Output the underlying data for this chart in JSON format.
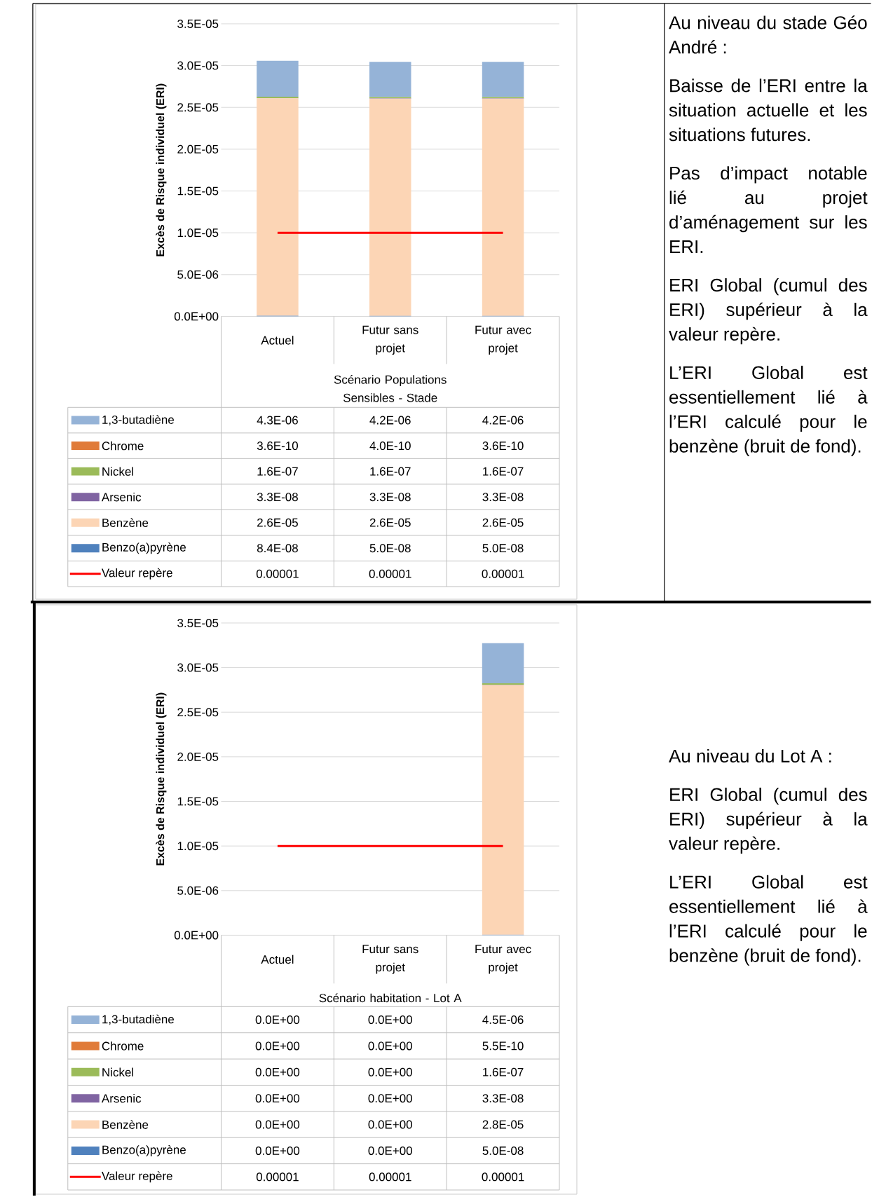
{
  "chart_data": [
    {
      "type": "bar",
      "stacked": true,
      "ylabel": "Excès de Risque individuel (ERI)",
      "xlabel": "Scénario Populations Sensibles - Stade",
      "categories": [
        "Actuel",
        "Futur sans projet",
        "Futur avec projet"
      ],
      "ylim": [
        0,
        3.5e-05
      ],
      "yticks": [
        {
          "value": 0,
          "label": "0.0E+00"
        },
        {
          "value": 5e-06,
          "label": "5.0E-06"
        },
        {
          "value": 1e-05,
          "label": "1.0E-05"
        },
        {
          "value": 1.5e-05,
          "label": "1.5E-05"
        },
        {
          "value": 2e-05,
          "label": "2.0E-05"
        },
        {
          "value": 2.5e-05,
          "label": "2.5E-05"
        },
        {
          "value": 3e-05,
          "label": "3.0E-05"
        },
        {
          "value": 3.5e-05,
          "label": "3.5E-05"
        }
      ],
      "grid": "y",
      "legend": "bottom",
      "series": [
        {
          "name": "Benzo(a)pyrène",
          "color": "#4f81bd",
          "values": [
            8.4e-08,
            5e-08,
            5e-08
          ],
          "value_labels": [
            "8.4E-08",
            "5.0E-08",
            "5.0E-08"
          ]
        },
        {
          "name": "Benzène",
          "color": "#fcd5b5",
          "values": [
            2.6e-05,
            2.6e-05,
            2.6e-05
          ],
          "value_labels": [
            "2.6E-05",
            "2.6E-05",
            "2.6E-05"
          ]
        },
        {
          "name": "Arsenic",
          "color": "#8064a2",
          "values": [
            3.3e-08,
            3.3e-08,
            3.3e-08
          ],
          "value_labels": [
            "3.3E-08",
            "3.3E-08",
            "3.3E-08"
          ]
        },
        {
          "name": "Nickel",
          "color": "#9bbb59",
          "values": [
            1.6e-07,
            1.6e-07,
            1.6e-07
          ],
          "value_labels": [
            "1.6E-07",
            "1.6E-07",
            "1.6E-07"
          ]
        },
        {
          "name": "Chrome",
          "color": "#e07b39",
          "values": [
            3.6e-10,
            4e-10,
            3.6e-10
          ],
          "value_labels": [
            "3.6E-10",
            "4.0E-10",
            "3.6E-10"
          ]
        },
        {
          "name": "1,3-butadiène",
          "color": "#95b3d7",
          "values": [
            4.3e-06,
            4.2e-06,
            4.2e-06
          ],
          "value_labels": [
            "4.3E-06",
            "4.2E-06",
            "4.2E-06"
          ]
        },
        {
          "name": "Valeur repère",
          "type": "line",
          "color": "#ff0000",
          "values": [
            1e-05,
            1e-05,
            1e-05
          ],
          "value_labels": [
            "0.00001",
            "0.00001",
            "0.00001"
          ]
        }
      ]
    },
    {
      "type": "other",
      "title": "Au niveau du stade Géo André :",
      "annotations": [
        "Baisse de l’ERI entre la situation actuelle et les situations futures.",
        "Pas d’impact notable lié au projet d’aménagement sur les ERI.",
        "ERI Global (cumul des ERI) supérieur à la valeur repère.",
        "L’ERI Global est essentiellement lié à l’ERI calculé pour le benzène (bruit de fond)."
      ]
    },
    {
      "type": "bar",
      "stacked": true,
      "ylabel": "Excès de Risque individuel (ERI)",
      "xlabel": "Scénario habitation - Lot A",
      "categories": [
        "Actuel",
        "Futur sans projet",
        "Futur avec projet"
      ],
      "ylim": [
        0,
        3.5e-05
      ],
      "yticks": [
        {
          "value": 0,
          "label": "0.0E+00"
        },
        {
          "value": 5e-06,
          "label": "5.0E-06"
        },
        {
          "value": 1e-05,
          "label": "1.0E-05"
        },
        {
          "value": 1.5e-05,
          "label": "1.5E-05"
        },
        {
          "value": 2e-05,
          "label": "2.0E-05"
        },
        {
          "value": 2.5e-05,
          "label": "2.5E-05"
        },
        {
          "value": 3e-05,
          "label": "3.0E-05"
        },
        {
          "value": 3.5e-05,
          "label": "3.5E-05"
        }
      ],
      "grid": "y",
      "legend": "bottom",
      "series": [
        {
          "name": "Benzo(a)pyrène",
          "color": "#4f81bd",
          "values": [
            0,
            0,
            5e-08
          ],
          "value_labels": [
            "0.0E+00",
            "0.0E+00",
            "5.0E-08"
          ]
        },
        {
          "name": "Benzène",
          "color": "#fcd5b5",
          "values": [
            0,
            0,
            2.8e-05
          ],
          "value_labels": [
            "0.0E+00",
            "0.0E+00",
            "2.8E-05"
          ]
        },
        {
          "name": "Arsenic",
          "color": "#8064a2",
          "values": [
            0,
            0,
            3.3e-08
          ],
          "value_labels": [
            "0.0E+00",
            "0.0E+00",
            "3.3E-08"
          ]
        },
        {
          "name": "Nickel",
          "color": "#9bbb59",
          "values": [
            0,
            0,
            1.6e-07
          ],
          "value_labels": [
            "0.0E+00",
            "0.0E+00",
            "1.6E-07"
          ]
        },
        {
          "name": "Chrome",
          "color": "#e07b39",
          "values": [
            0,
            0,
            5.5e-10
          ],
          "value_labels": [
            "0.0E+00",
            "0.0E+00",
            "5.5E-10"
          ]
        },
        {
          "name": "1,3-butadiène",
          "color": "#95b3d7",
          "values": [
            0,
            0,
            4.5e-06
          ],
          "value_labels": [
            "0.0E+00",
            "0.0E+00",
            "4.5E-06"
          ]
        },
        {
          "name": "Valeur repère",
          "type": "line",
          "color": "#ff0000",
          "values": [
            1e-05,
            1e-05,
            1e-05
          ],
          "value_labels": [
            "0.00001",
            "0.00001",
            "0.00001"
          ]
        }
      ]
    },
    {
      "type": "other",
      "title": "Au niveau du Lot A :",
      "annotations": [
        "ERI Global (cumul des ERI) supérieur à la valeur repère.",
        "L’ERI Global est essentiellement lié à l’ERI calculé pour le benzène (bruit de fond)."
      ]
    }
  ]
}
